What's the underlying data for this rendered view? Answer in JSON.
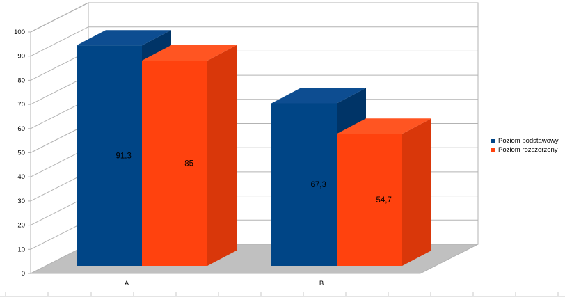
{
  "chart_data": {
    "type": "bar",
    "categories": [
      "A",
      "B"
    ],
    "series": [
      {
        "name": "Poziom podstawowy",
        "values": [
          91.3,
          67.3
        ],
        "labels": [
          "91,3",
          "67,3"
        ]
      },
      {
        "name": "Poziom rozszerzony",
        "values": [
          85,
          54.7
        ],
        "labels": [
          "85",
          "54,7"
        ]
      }
    ],
    "ylim": [
      0,
      100
    ],
    "yticks": [
      0,
      10,
      20,
      30,
      40,
      50,
      60,
      70,
      80,
      90,
      100
    ],
    "grid": true,
    "three_d": true,
    "legend_position": "right",
    "colors": {
      "series0_front": "#004586",
      "series0_side": "#003467",
      "series0_top": "#0d4d91",
      "series1_front": "#ff420e",
      "series1_side": "#d9370a",
      "series1_top": "#ff5522",
      "floor": "#c0c0c0",
      "grid": "#b3b3b3"
    }
  }
}
